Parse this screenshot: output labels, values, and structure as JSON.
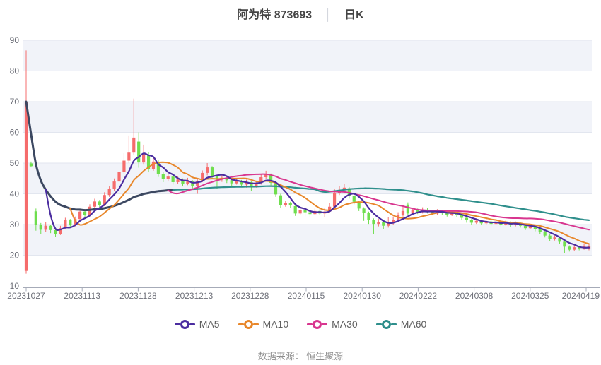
{
  "title": {
    "stock": "阿为特 873693",
    "separator": "│",
    "period": "日K"
  },
  "source": "数据来源： 恒生聚源",
  "legend": [
    {
      "label": "MA5",
      "color": "#4b2da0"
    },
    {
      "label": "MA10",
      "color": "#e8872b"
    },
    {
      "label": "MA30",
      "color": "#d8368f"
    },
    {
      "label": "MA60",
      "color": "#2f8f8c"
    }
  ],
  "chart_data": {
    "type": "candlestick",
    "title": "阿为特 873693 日K",
    "x_ticks": [
      "20231027",
      "20231113",
      "20231128",
      "20231213",
      "20231228",
      "20240115",
      "20240130",
      "20240222",
      "20240308",
      "20240325",
      "20240419"
    ],
    "y_ticks": [
      10,
      20,
      30,
      40,
      50,
      60,
      70,
      80,
      90
    ],
    "ylim": [
      10,
      90
    ],
    "grid": true,
    "legend_position": "bottom",
    "up_color": "#f56c6c",
    "down_color": "#6fde4e",
    "ma_windows": {
      "MA5": 5,
      "MA10": 10,
      "MA30": 30,
      "MA60": 60
    },
    "ma60_partial_color": "#3c4861",
    "band_colors": [
      "#f1f3f9",
      "#ffffff"
    ],
    "gridline_color": "#e2e6ef",
    "axis_color": "#a6abb8",
    "axis_label_color": "#6e7079",
    "candles_ochl_note": "per candle: [open, close, low, high]; red = close >= open (CN convention)",
    "candles": [
      [
        14.9,
        70.0,
        14.0,
        86.7
      ],
      [
        49.9,
        49.0,
        48.6,
        50.5
      ],
      [
        34.3,
        30.0,
        28.0,
        35.2
      ],
      [
        30.0,
        28.3,
        26.8,
        30.5
      ],
      [
        28.3,
        29.6,
        27.6,
        30.8
      ],
      [
        29.6,
        28.2,
        27.2,
        30.0
      ],
      [
        28.2,
        27.0,
        25.9,
        28.8
      ],
      [
        27.0,
        28.8,
        26.6,
        29.6
      ],
      [
        28.8,
        31.4,
        28.4,
        32.2
      ],
      [
        31.4,
        29.8,
        29.0,
        31.8
      ],
      [
        29.8,
        31.8,
        29.4,
        32.6
      ],
      [
        31.8,
        34.2,
        31.2,
        35.0
      ],
      [
        34.2,
        33.0,
        32.0,
        34.8
      ],
      [
        33.0,
        35.8,
        32.6,
        36.6
      ],
      [
        35.8,
        37.5,
        35.0,
        38.4
      ],
      [
        37.5,
        36.4,
        35.2,
        38.0
      ],
      [
        36.4,
        39.6,
        36.0,
        40.5
      ],
      [
        39.6,
        41.5,
        39.0,
        42.4
      ],
      [
        41.5,
        44.0,
        40.8,
        45.0
      ],
      [
        44.0,
        47.2,
        43.5,
        49.3
      ],
      [
        47.2,
        50.8,
        46.6,
        53.2
      ],
      [
        50.8,
        53.4,
        50.0,
        59.0
      ],
      [
        53.4,
        58.3,
        52.8,
        71.0
      ],
      [
        57.0,
        50.2,
        48.5,
        60.0
      ],
      [
        50.2,
        53.0,
        49.5,
        56.0
      ],
      [
        52.5,
        48.0,
        47.0,
        53.5
      ],
      [
        48.0,
        50.5,
        47.5,
        52.0
      ],
      [
        50.0,
        46.5,
        45.5,
        51.0
      ],
      [
        46.5,
        44.8,
        43.8,
        47.2
      ],
      [
        44.8,
        45.6,
        44.0,
        46.8
      ],
      [
        45.6,
        43.8,
        43.0,
        46.0
      ],
      [
        43.8,
        44.6,
        43.2,
        45.6
      ],
      [
        44.6,
        43.2,
        42.4,
        45.0
      ],
      [
        43.2,
        44.0,
        42.8,
        45.2
      ],
      [
        44.0,
        42.6,
        41.8,
        44.4
      ],
      [
        42.6,
        44.2,
        40.0,
        45.0
      ],
      [
        44.2,
        46.8,
        43.8,
        47.6
      ],
      [
        46.8,
        48.6,
        46.0,
        50.0
      ],
      [
        48.6,
        45.8,
        44.9,
        49.0
      ],
      [
        45.8,
        44.6,
        41.5,
        46.2
      ],
      [
        44.6,
        45.2,
        43.9,
        46.5
      ],
      [
        45.2,
        44.4,
        43.5,
        45.8
      ],
      [
        44.4,
        43.4,
        42.6,
        44.8
      ],
      [
        43.4,
        44.1,
        43.0,
        45.0
      ],
      [
        44.1,
        43.0,
        42.2,
        44.5
      ],
      [
        43.0,
        43.8,
        42.0,
        44.6
      ],
      [
        43.8,
        42.6,
        41.0,
        44.0
      ],
      [
        42.6,
        43.5,
        42.0,
        44.2
      ],
      [
        43.5,
        45.4,
        43.0,
        46.4
      ],
      [
        45.4,
        46.3,
        44.8,
        47.5
      ],
      [
        46.0,
        43.6,
        42.8,
        46.6
      ],
      [
        43.4,
        39.8,
        39.0,
        43.8
      ],
      [
        39.5,
        36.4,
        35.5,
        40.0
      ],
      [
        36.4,
        36.9,
        35.8,
        37.8
      ],
      [
        36.9,
        36.2,
        35.4,
        37.4
      ],
      [
        36.0,
        33.6,
        32.8,
        36.4
      ],
      [
        33.6,
        34.8,
        33.0,
        35.6
      ],
      [
        34.8,
        34.0,
        32.6,
        35.2
      ],
      [
        34.0,
        33.4,
        32.4,
        34.6
      ],
      [
        33.4,
        34.4,
        33.0,
        35.2
      ],
      [
        34.4,
        33.6,
        33.0,
        35.0
      ],
      [
        33.6,
        34.2,
        32.4,
        35.4
      ],
      [
        34.2,
        35.8,
        33.8,
        37.0
      ],
      [
        35.8,
        40.2,
        35.2,
        41.5
      ],
      [
        40.2,
        41.3,
        39.6,
        42.6
      ],
      [
        41.3,
        42.0,
        40.6,
        43.2
      ],
      [
        41.8,
        39.2,
        38.4,
        42.2
      ],
      [
        39.2,
        37.4,
        36.6,
        39.6
      ],
      [
        37.4,
        35.2,
        34.4,
        37.8
      ],
      [
        35.2,
        33.8,
        31.2,
        35.6
      ],
      [
        33.8,
        31.4,
        30.2,
        34.2
      ],
      [
        31.4,
        30.2,
        26.9,
        32.0
      ],
      [
        30.2,
        30.9,
        29.4,
        31.8
      ],
      [
        30.9,
        29.6,
        28.4,
        31.2
      ],
      [
        29.6,
        30.6,
        29.0,
        32.4
      ],
      [
        30.6,
        31.6,
        30.0,
        32.6
      ],
      [
        31.6,
        33.0,
        31.0,
        34.0
      ],
      [
        33.0,
        34.4,
        32.6,
        36.0
      ],
      [
        36.5,
        33.6,
        33.0,
        37.2
      ],
      [
        33.6,
        34.6,
        33.2,
        35.4
      ],
      [
        34.6,
        34.0,
        33.4,
        35.2
      ],
      [
        34.0,
        34.8,
        33.6,
        35.6
      ],
      [
        34.8,
        34.2,
        33.6,
        35.4
      ],
      [
        34.2,
        33.6,
        33.0,
        34.6
      ],
      [
        33.6,
        34.4,
        33.2,
        35.0
      ],
      [
        34.4,
        33.8,
        33.2,
        34.8
      ],
      [
        33.8,
        33.2,
        32.6,
        34.2
      ],
      [
        33.2,
        33.8,
        32.8,
        34.4
      ],
      [
        33.8,
        33.0,
        32.4,
        34.2
      ],
      [
        33.0,
        32.2,
        31.6,
        33.4
      ],
      [
        32.2,
        31.4,
        30.6,
        32.6
      ],
      [
        31.4,
        30.6,
        30.0,
        31.8
      ],
      [
        30.6,
        31.2,
        30.2,
        32.0
      ],
      [
        31.2,
        30.4,
        29.8,
        31.6
      ],
      [
        30.4,
        31.0,
        30.0,
        31.8
      ],
      [
        31.0,
        30.2,
        29.6,
        31.4
      ],
      [
        30.2,
        30.8,
        29.8,
        31.6
      ],
      [
        30.8,
        30.0,
        29.4,
        31.2
      ],
      [
        30.0,
        30.6,
        29.6,
        31.4
      ],
      [
        30.6,
        29.8,
        29.2,
        31.0
      ],
      [
        29.8,
        30.4,
        29.4,
        31.0
      ],
      [
        30.4,
        29.6,
        29.0,
        30.8
      ],
      [
        29.6,
        28.8,
        28.2,
        30.0
      ],
      [
        28.8,
        29.4,
        28.4,
        30.0
      ],
      [
        29.4,
        28.6,
        27.8,
        29.8
      ],
      [
        28.6,
        27.6,
        27.0,
        29.0
      ],
      [
        27.6,
        26.4,
        25.8,
        28.0
      ],
      [
        26.4,
        25.2,
        24.6,
        26.8
      ],
      [
        25.2,
        25.8,
        24.8,
        26.4
      ],
      [
        25.6,
        24.4,
        23.8,
        26.0
      ],
      [
        24.4,
        22.8,
        20.6,
        24.8
      ],
      [
        22.8,
        21.8,
        21.2,
        23.2
      ],
      [
        21.8,
        22.6,
        21.4,
        23.4
      ],
      [
        22.6,
        22.2,
        21.6,
        23.0
      ],
      [
        22.2,
        23.0,
        21.8,
        23.8
      ],
      [
        22.0,
        22.9,
        21.6,
        23.6
      ]
    ]
  }
}
